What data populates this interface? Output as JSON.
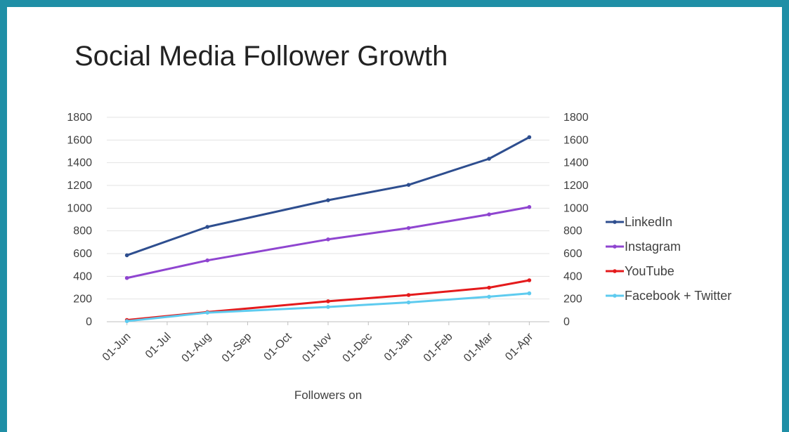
{
  "chart_data": {
    "type": "line",
    "title": "Social Media Follower Growth",
    "xlabel": "Followers on",
    "ylabel": "",
    "categories": [
      "01-Jun",
      "01-Jul",
      "01-Aug",
      "01-Sep",
      "01-Oct",
      "01-Nov",
      "01-Dec",
      "01-Jan",
      "01-Feb",
      "01-Mar",
      "01-Apr"
    ],
    "x_unit": "date",
    "ylim": [
      0,
      1800
    ],
    "yticks": [
      0,
      200,
      400,
      600,
      800,
      1000,
      1200,
      1400,
      1600,
      1800
    ],
    "secondary_yticks": [
      0,
      200,
      400,
      600,
      800,
      1000,
      1200,
      1400,
      1600,
      1800
    ],
    "grid": true,
    "legend_position": "right",
    "series": [
      {
        "name": "LinkedIn",
        "color": "#2e4e8f",
        "points": [
          [
            "01-Jun",
            585
          ],
          [
            "01-Aug",
            835
          ],
          [
            "01-Nov",
            1070
          ],
          [
            "01-Jan",
            1205
          ],
          [
            "01-Mar",
            1435
          ],
          [
            "01-Apr",
            1625
          ]
        ]
      },
      {
        "name": "Instagram",
        "color": "#8f45d0",
        "points": [
          [
            "01-Jun",
            385
          ],
          [
            "01-Aug",
            540
          ],
          [
            "01-Nov",
            725
          ],
          [
            "01-Jan",
            825
          ],
          [
            "01-Mar",
            945
          ],
          [
            "01-Apr",
            1010
          ]
        ]
      },
      {
        "name": "YouTube",
        "color": "#e41a1c",
        "points": [
          [
            "01-Jun",
            15
          ],
          [
            "01-Aug",
            85
          ],
          [
            "01-Nov",
            180
          ],
          [
            "01-Jan",
            235
          ],
          [
            "01-Mar",
            300
          ],
          [
            "01-Apr",
            365
          ]
        ]
      },
      {
        "name": "Facebook + Twitter",
        "color": "#5ecbef",
        "points": [
          [
            "01-Jun",
            5
          ],
          [
            "01-Aug",
            80
          ],
          [
            "01-Nov",
            130
          ],
          [
            "01-Jan",
            170
          ],
          [
            "01-Mar",
            220
          ],
          [
            "01-Apr",
            250
          ]
        ]
      }
    ]
  }
}
